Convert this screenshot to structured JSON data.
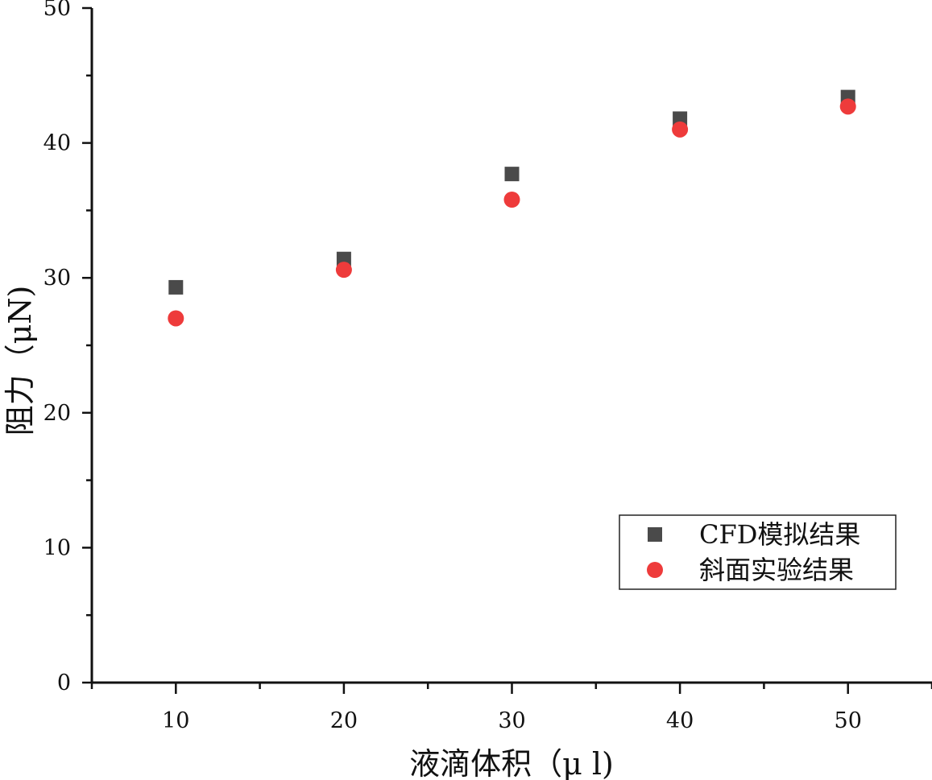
{
  "chart_data": {
    "type": "scatter",
    "title": "",
    "xlabel": "液滴体积（μ l)",
    "ylabel": "阻力（μN)",
    "xlim": [
      5,
      55
    ],
    "ylim": [
      0,
      50
    ],
    "x_ticks": [
      10,
      20,
      30,
      40,
      50
    ],
    "y_ticks": [
      0,
      10,
      20,
      30,
      40,
      50
    ],
    "grid": false,
    "legend_position": "bottom-right",
    "series": [
      {
        "name": "CFD模拟结果",
        "marker": "square",
        "color": "#4a4a4a",
        "x": [
          10,
          20,
          30,
          40,
          50
        ],
        "y": [
          29.3,
          31.4,
          37.7,
          41.8,
          43.4
        ]
      },
      {
        "name": "斜面实验结果",
        "marker": "circle",
        "color": "#ee3b3b",
        "x": [
          10,
          20,
          30,
          40,
          50
        ],
        "y": [
          27.0,
          30.6,
          35.8,
          41.0,
          42.7
        ]
      }
    ]
  }
}
